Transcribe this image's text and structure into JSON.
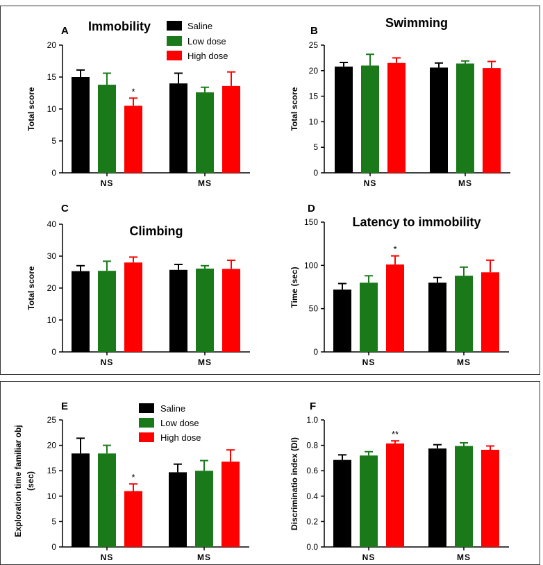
{
  "figure": {
    "legend_top": [
      "Saline",
      "Low dose",
      "High dose"
    ],
    "legend_bottom": [
      "Saline",
      "Low dose",
      "High dose"
    ],
    "colors": {
      "Saline": "#000000",
      "Low dose": "#1a7a1a",
      "High dose": "#ff0000"
    }
  },
  "chart_data": [
    {
      "panel": "A",
      "title": "Immobility",
      "type": "bar",
      "ylabel": "Total score",
      "xlabel": "",
      "categories": [
        "NS",
        "MS"
      ],
      "ylim": [
        0,
        20
      ],
      "yticks": [
        "0",
        "5",
        "10",
        "15",
        "20"
      ],
      "series": [
        {
          "name": "Saline",
          "values": [
            15.0,
            14.0
          ],
          "errors": [
            1.1,
            1.6
          ]
        },
        {
          "name": "Low dose",
          "values": [
            13.8,
            12.6
          ],
          "errors": [
            1.8,
            0.8
          ]
        },
        {
          "name": "High dose",
          "values": [
            10.5,
            13.6
          ],
          "errors": [
            1.2,
            2.2
          ]
        }
      ],
      "annotations": [
        {
          "category": "NS",
          "series": "High dose",
          "text": "*"
        }
      ]
    },
    {
      "panel": "B",
      "title": "Swimming",
      "type": "bar",
      "ylabel": "Total score",
      "xlabel": "",
      "categories": [
        "NS",
        "MS"
      ],
      "ylim": [
        0,
        25
      ],
      "yticks": [
        "0",
        "5",
        "10",
        "15",
        "20",
        "25"
      ],
      "series": [
        {
          "name": "Saline",
          "values": [
            20.8,
            20.6
          ],
          "errors": [
            0.8,
            0.9
          ]
        },
        {
          "name": "Low dose",
          "values": [
            21.0,
            21.4
          ],
          "errors": [
            2.2,
            0.5
          ]
        },
        {
          "name": "High dose",
          "values": [
            21.5,
            20.5
          ],
          "errors": [
            1.0,
            1.3
          ]
        }
      ],
      "annotations": []
    },
    {
      "panel": "C",
      "title": "Climbing",
      "type": "bar",
      "ylabel": "Total score",
      "xlabel": "",
      "categories": [
        "NS",
        "MS"
      ],
      "ylim": [
        0,
        40
      ],
      "yticks": [
        "0",
        "10",
        "20",
        "30",
        "40"
      ],
      "series": [
        {
          "name": "Saline",
          "values": [
            25.3,
            25.7
          ],
          "errors": [
            1.7,
            1.7
          ]
        },
        {
          "name": "Low dose",
          "values": [
            25.4,
            26.1
          ],
          "errors": [
            3.0,
            0.9
          ]
        },
        {
          "name": "High dose",
          "values": [
            28.0,
            26.0
          ],
          "errors": [
            1.7,
            2.7
          ]
        }
      ],
      "annotations": []
    },
    {
      "panel": "D",
      "title": "Latency to immobility",
      "type": "bar",
      "ylabel": "Time (sec)",
      "xlabel": "",
      "categories": [
        "NS",
        "MS"
      ],
      "ylim": [
        0,
        150
      ],
      "yticks": [
        "0",
        "50",
        "100",
        "150"
      ],
      "series": [
        {
          "name": "Saline",
          "values": [
            72,
            80
          ],
          "errors": [
            7,
            6
          ]
        },
        {
          "name": "Low dose",
          "values": [
            80,
            88
          ],
          "errors": [
            8,
            10
          ]
        },
        {
          "name": "High dose",
          "values": [
            101,
            92
          ],
          "errors": [
            10,
            14
          ]
        }
      ],
      "annotations": [
        {
          "category": "NS",
          "series": "High dose",
          "text": "*"
        }
      ]
    },
    {
      "panel": "E",
      "title": "",
      "type": "bar",
      "ylabel": "Exploration time familiar obj (sec)",
      "xlabel": "",
      "categories": [
        "NS",
        "MS"
      ],
      "ylim": [
        0,
        25
      ],
      "yticks": [
        "0",
        "5",
        "10",
        "15",
        "20",
        "25"
      ],
      "series": [
        {
          "name": "Saline",
          "values": [
            18.4,
            14.7
          ],
          "errors": [
            3.0,
            1.6
          ]
        },
        {
          "name": "Low dose",
          "values": [
            18.4,
            15.0
          ],
          "errors": [
            1.6,
            2.0
          ]
        },
        {
          "name": "High dose",
          "values": [
            11.0,
            16.8
          ],
          "errors": [
            1.4,
            2.3
          ]
        }
      ],
      "annotations": [
        {
          "category": "NS",
          "series": "High dose",
          "text": "*"
        }
      ]
    },
    {
      "panel": "F",
      "title": "",
      "type": "bar",
      "ylabel": "Discriminatio index (DI)",
      "xlabel": "",
      "categories": [
        "NS",
        "MS"
      ],
      "ylim": [
        0,
        1.0
      ],
      "yticks": [
        "0.0",
        "0.2",
        "0.4",
        "0.6",
        "0.8",
        "1.0"
      ],
      "series": [
        {
          "name": "Saline",
          "values": [
            0.685,
            0.775
          ],
          "errors": [
            0.04,
            0.03
          ]
        },
        {
          "name": "Low dose",
          "values": [
            0.72,
            0.795
          ],
          "errors": [
            0.03,
            0.025
          ]
        },
        {
          "name": "High dose",
          "values": [
            0.815,
            0.765
          ],
          "errors": [
            0.02,
            0.03
          ]
        }
      ],
      "annotations": [
        {
          "category": "NS",
          "series": "High dose",
          "text": "**"
        }
      ]
    }
  ]
}
